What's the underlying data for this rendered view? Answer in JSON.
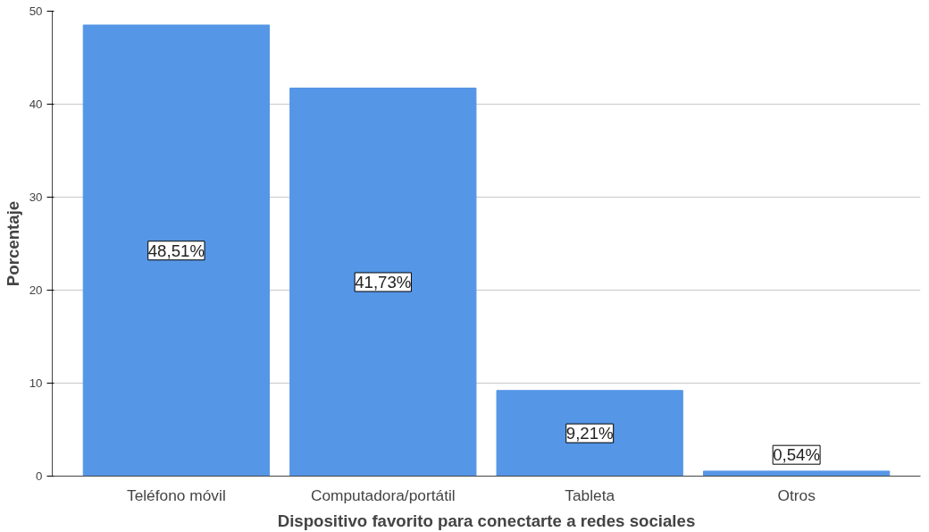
{
  "chart_data": {
    "type": "bar",
    "xlabel": "Dispositivo favorito para conectarte a redes sociales",
    "ylabel": "Porcentaje",
    "categories": [
      "Teléfono móvil",
      "Computadora/portátil",
      "Tableta",
      "Otros"
    ],
    "values": [
      48.51,
      41.73,
      9.21,
      0.54
    ],
    "value_labels": [
      "48,51%",
      "41,73%",
      "9,21%",
      "0,54%"
    ],
    "color": "#5596e6",
    "ylim": [
      0,
      50
    ],
    "yticks": [
      0,
      10,
      20,
      30,
      40,
      50
    ],
    "grid": "y"
  }
}
